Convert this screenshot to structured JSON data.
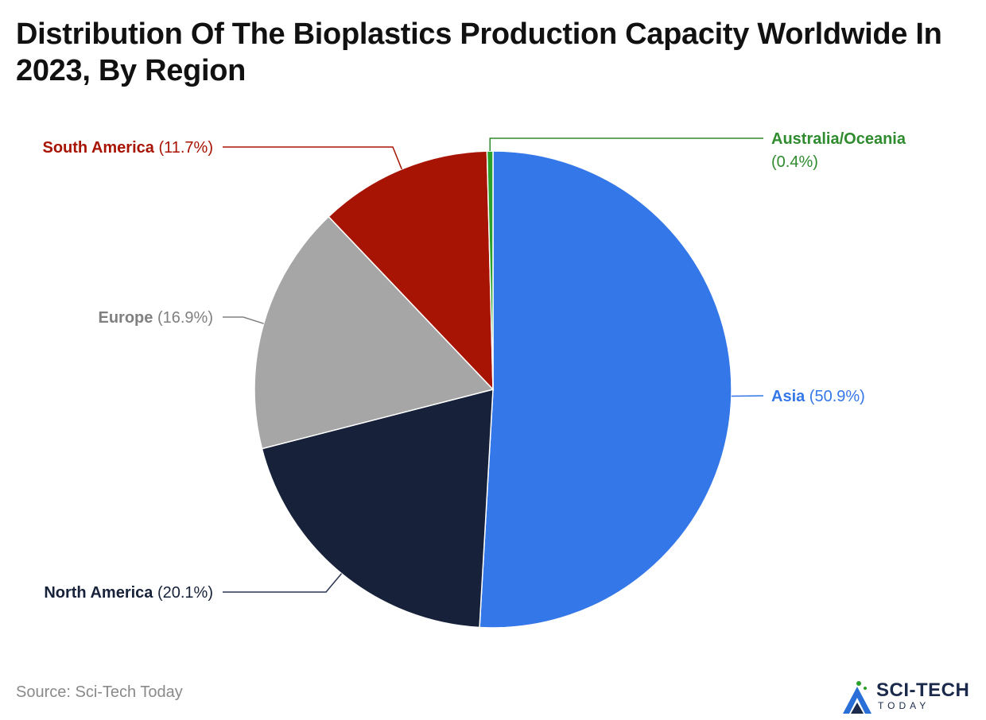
{
  "title": "Distribution Of The Bioplastics Production Capacity Worldwide In 2023, By Region",
  "source": "Source: Sci-Tech Today",
  "logo": {
    "text": "SCI-TECH",
    "subtext": "TODAY"
  },
  "chart_data": {
    "type": "pie",
    "title": "Distribution Of The Bioplastics Production Capacity Worldwide In 2023, By Region",
    "slices": [
      {
        "label": "Asia",
        "value": 50.9,
        "display": "(50.9%)",
        "color": "#3477E8"
      },
      {
        "label": "North America",
        "value": 20.1,
        "display": "(20.1%)",
        "color": "#17223A"
      },
      {
        "label": "Europe",
        "value": 16.9,
        "display": "(16.9%)",
        "color": "#A6A6A6",
        "label_color": "#808080"
      },
      {
        "label": "South America",
        "value": 11.7,
        "display": "(11.7%)",
        "color": "#A81404"
      },
      {
        "label": "Australia/Oceania",
        "value": 0.4,
        "display": "(0.4%)",
        "color": "#2AA12A",
        "label_color": "#2E8B2E"
      }
    ]
  }
}
